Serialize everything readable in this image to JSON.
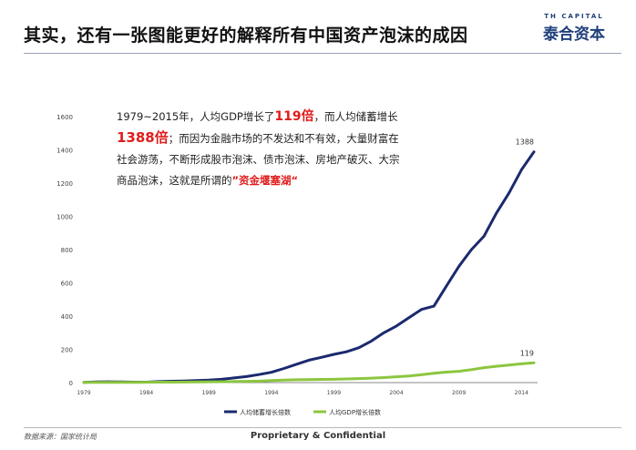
{
  "slide": {
    "title": "其实，还有一张图能更好的解释所有中国资产泡沫的成因",
    "logo_en": "TH CAPITAL",
    "logo_cn": "泰合资本"
  },
  "annotation": {
    "p1": "1979~2015年，人均GDP增长了",
    "v1": "119倍",
    "p2": "，而人均储蓄增长",
    "v2": "1388倍",
    "p3": "；而因为金融市场的不发达和不有效，大量财富在社会游荡，不断形成股市泡沫、债市泡沫、房地产破灭、大宗商品泡沫，这就是所谓的",
    "tag": "”资金堰塞湖“"
  },
  "footer": {
    "source": "数据来源：国家统计局",
    "confidential": "Proprietary & Confidential"
  },
  "colors": {
    "savings": "#1b2a6e",
    "gdp": "#8cc63f",
    "axis": "#888888",
    "annotation_hl": "#e01c1c"
  },
  "chart_data": {
    "type": "line",
    "ylim": [
      0,
      1600
    ],
    "yticks": [
      0,
      200,
      400,
      600,
      800,
      1000,
      1200,
      1400,
      1600
    ],
    "xlim": [
      1979,
      2015
    ],
    "xticks": [
      1979,
      1984,
      1989,
      1994,
      1999,
      2004,
      2009,
      2014
    ],
    "legend_position": "bottom",
    "x": [
      1979,
      1980,
      1981,
      1982,
      1983,
      1984,
      1985,
      1986,
      1987,
      1988,
      1989,
      1990,
      1991,
      1992,
      1993,
      1994,
      1995,
      1996,
      1997,
      1998,
      1999,
      2000,
      2001,
      2002,
      2003,
      2004,
      2005,
      2006,
      2007,
      2008,
      2009,
      2010,
      2011,
      2012,
      2013,
      2014,
      2015
    ],
    "series": [
      {
        "name": "人均储蓄增长倍数",
        "values": [
          1,
          4,
          5,
          4,
          3,
          3,
          6,
          8,
          10,
          12,
          15,
          20,
          28,
          36,
          48,
          62,
          85,
          110,
          135,
          152,
          170,
          185,
          210,
          250,
          300,
          340,
          390,
          440,
          460,
          580,
          700,
          800,
          880,
          1020,
          1140,
          1280,
          1388
        ],
        "end_label": "1388"
      },
      {
        "name": "人均GDP增长倍数",
        "values": [
          1,
          1.2,
          1.3,
          1.4,
          1.6,
          2,
          2.5,
          3,
          3.5,
          4.5,
          5,
          5.5,
          6.5,
          7.5,
          9,
          12,
          15,
          17,
          18,
          19,
          20,
          22,
          24,
          27,
          30,
          35,
          40,
          47,
          56,
          63,
          68,
          78,
          90,
          98,
          106,
          113,
          119
        ],
        "end_label": "119"
      }
    ]
  }
}
